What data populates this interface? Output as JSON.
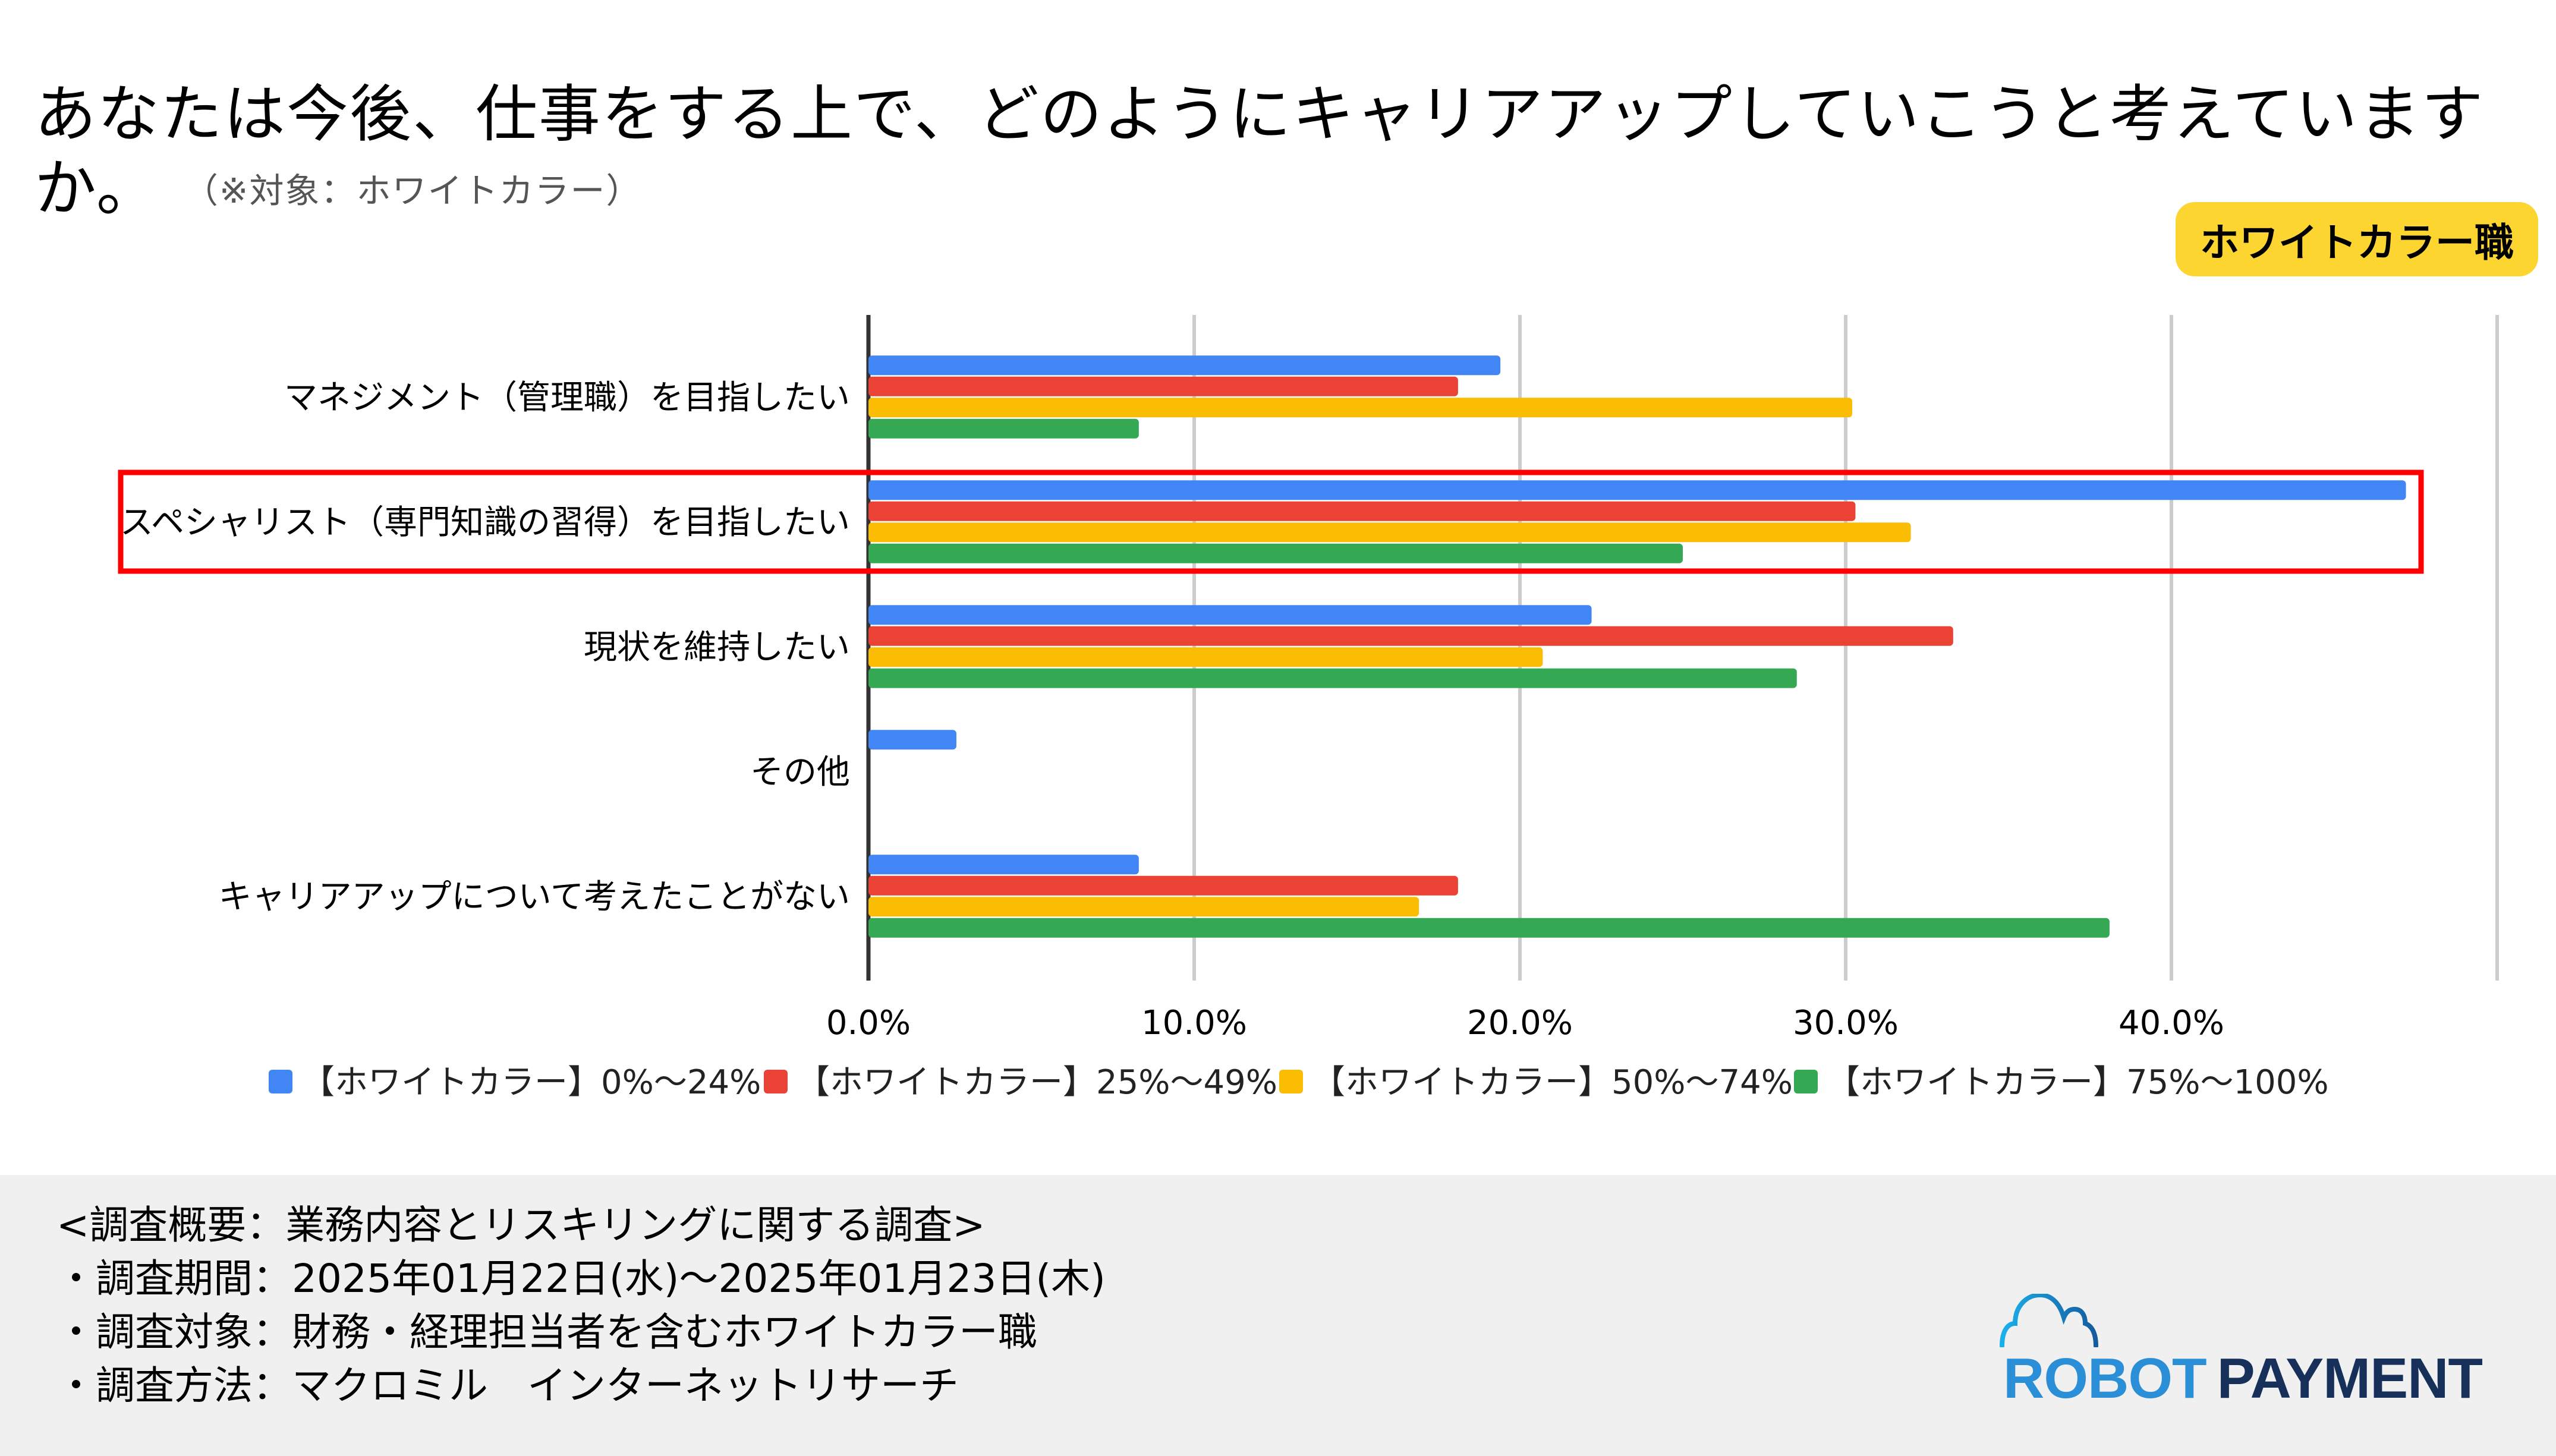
{
  "header": {
    "title": "あなたは今後、仕事をする上で、どのようにキャリアアップしていこうと考えていますか。",
    "subtitle": "（※対象：ホワイトカラー）",
    "badge": "ホワイトカラー職"
  },
  "chart_data": {
    "type": "bar",
    "orientation": "horizontal",
    "title": "あなたは今後、仕事をする上で、どのようにキャリアアップしていこうと考えていますか。",
    "categories": [
      "マネジメント（管理職）を目指したい",
      "スペシャリスト（専門知識の習得）を目指したい",
      "現状を維持したい",
      "その他",
      "キャリアアップについて考えたことがない"
    ],
    "highlighted_category": "スペシャリスト（専門知識の習得）を目指したい",
    "series": [
      {
        "name": "【ホワイトカラー】0%～24%",
        "color": "#4285f4",
        "values": [
          19.4,
          47.2,
          22.2,
          2.7,
          8.3
        ]
      },
      {
        "name": "【ホワイトカラー】25%～49%",
        "color": "#ea4335",
        "values": [
          18.1,
          30.3,
          33.3,
          0,
          18.1
        ]
      },
      {
        "name": "【ホワイトカラー】50%～74%",
        "color": "#fbbc04",
        "values": [
          30.2,
          32.0,
          20.7,
          0,
          16.9
        ]
      },
      {
        "name": "【ホワイトカラー】75%～100%",
        "color": "#34a853",
        "values": [
          8.3,
          25.0,
          28.5,
          0,
          38.1
        ]
      }
    ],
    "xlim": [
      0,
      50
    ],
    "xticks": [
      0,
      10,
      20,
      30,
      40
    ],
    "xtick_labels": [
      "0.0%",
      "10.0%",
      "20.0%",
      "30.0%",
      "40.0%"
    ],
    "xlabel": "",
    "ylabel": "",
    "grid": true,
    "legend_position": "bottom"
  },
  "footer": {
    "lines": [
      "<調査概要：業務内容とリスキリングに関する調査>",
      "・調査期間：2025年01月22日(水)～2025年01月23日(木)",
      "・調査対象：財務・経理担当者を含むホワイトカラー職",
      "・調査方法：マクロミル　インターネットリサーチ"
    ],
    "logo_word1": "ROBOT",
    "logo_word2": "PAYMENT"
  },
  "colors": {
    "badge": "#fdd530",
    "highlight_box": "#ff0000",
    "footer_bg": "#f0f0f0"
  }
}
